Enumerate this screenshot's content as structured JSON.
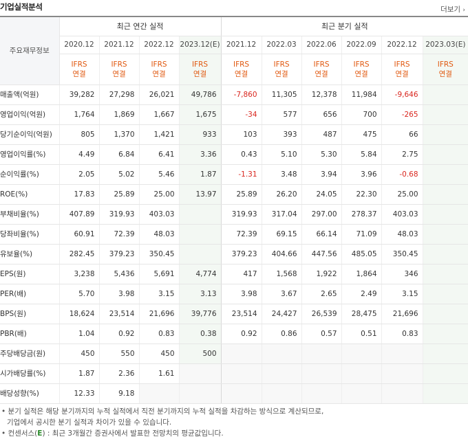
{
  "header": {
    "title": "기업실적분석",
    "more_label": "더보기",
    "more_icon": "chevron-right-icon"
  },
  "table": {
    "row_header_label": "주요재무정보",
    "annual_group": "최근 연간 실적",
    "quarter_group": "최근 분기 실적",
    "annual_periods": [
      "2020.12",
      "2021.12",
      "2022.12",
      "2023.12(E)"
    ],
    "quarter_periods": [
      "2021.12",
      "2022.03",
      "2022.06",
      "2022.09",
      "2022.12",
      "2023.03(E)"
    ],
    "ifrs_top": "IFRS",
    "ifrs_bottom": "연결",
    "rows": [
      {
        "label": "매출액(억원)",
        "values": [
          "39,282",
          "27,298",
          "26,021",
          "49,786",
          "-7,860",
          "11,305",
          "12,378",
          "11,984",
          "-9,646",
          ""
        ]
      },
      {
        "label": "영업이익(억원)",
        "values": [
          "1,764",
          "1,869",
          "1,667",
          "1,675",
          "-34",
          "577",
          "656",
          "700",
          "-265",
          ""
        ]
      },
      {
        "label": "당기순이익(억원)",
        "values": [
          "805",
          "1,370",
          "1,421",
          "933",
          "103",
          "393",
          "487",
          "475",
          "66",
          ""
        ]
      },
      {
        "label": "영업이익률(%)",
        "values": [
          "4.49",
          "6.84",
          "6.41",
          "3.36",
          "0.43",
          "5.10",
          "5.30",
          "5.84",
          "2.75",
          ""
        ]
      },
      {
        "label": "순이익률(%)",
        "values": [
          "2.05",
          "5.02",
          "5.46",
          "1.87",
          "-1.31",
          "3.48",
          "3.94",
          "3.96",
          "-0.68",
          ""
        ]
      },
      {
        "label": "ROE(%)",
        "values": [
          "17.83",
          "25.89",
          "25.00",
          "13.97",
          "25.89",
          "26.20",
          "24.05",
          "22.30",
          "25.00",
          ""
        ]
      },
      {
        "label": "부채비율(%)",
        "values": [
          "407.89",
          "319.93",
          "403.03",
          "",
          "319.93",
          "317.04",
          "297.00",
          "278.37",
          "403.03",
          ""
        ]
      },
      {
        "label": "당좌비율(%)",
        "values": [
          "60.91",
          "72.39",
          "48.03",
          "",
          "72.39",
          "69.15",
          "66.14",
          "71.09",
          "48.03",
          ""
        ]
      },
      {
        "label": "유보율(%)",
        "values": [
          "282.45",
          "379.23",
          "350.45",
          "",
          "379.23",
          "404.66",
          "447.56",
          "485.05",
          "350.45",
          ""
        ]
      },
      {
        "label": "EPS(원)",
        "values": [
          "3,238",
          "5,436",
          "5,691",
          "4,774",
          "417",
          "1,568",
          "1,922",
          "1,864",
          "346",
          ""
        ]
      },
      {
        "label": "PER(배)",
        "values": [
          "5.70",
          "3.98",
          "3.15",
          "3.13",
          "3.98",
          "3.67",
          "2.65",
          "2.49",
          "3.15",
          ""
        ]
      },
      {
        "label": "BPS(원)",
        "values": [
          "18,624",
          "23,514",
          "21,696",
          "39,776",
          "23,514",
          "24,427",
          "26,539",
          "28,475",
          "21,696",
          ""
        ]
      },
      {
        "label": "PBR(배)",
        "values": [
          "1.04",
          "0.92",
          "0.83",
          "0.38",
          "0.92",
          "0.86",
          "0.57",
          "0.51",
          "0.83",
          ""
        ]
      },
      {
        "label": "주당배당금(원)",
        "values": [
          "450",
          "550",
          "450",
          "500",
          "",
          "",
          "",
          "",
          "",
          ""
        ]
      },
      {
        "label": "시가배당률(%)",
        "values": [
          "1.87",
          "2.36",
          "1.61",
          "",
          "",
          "",
          "",
          "",
          "",
          ""
        ]
      },
      {
        "label": "배당성향(%)",
        "values": [
          "12.33",
          "9.18",
          "",
          "",
          "",
          "",
          "",
          "",
          "",
          ""
        ]
      }
    ]
  },
  "notes": {
    "line1": "• 분기 실적은 해당 분기까지의 누적 실적에서 직전 분기까지의 누적 실적을 차감하는 방식으로 계산되므로,",
    "line2": "기업에서 공시한 분기 실적과 차이가 있을 수 있습니다.",
    "line3_prefix": "• 컨센서스(",
    "line3_e": "E",
    "line3_suffix": ") : 최근 3개월간 증권사에서 발표한 전망치의 평균값입니다."
  },
  "colors": {
    "negative": "#d9251d",
    "ifrs": "#e0580f",
    "estimate_bg": "#f3f8f3",
    "consensus_e": "#2a8a2a"
  }
}
